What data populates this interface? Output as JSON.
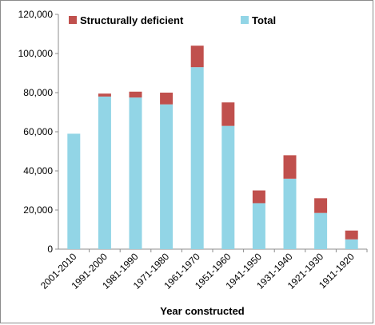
{
  "chart_data": {
    "type": "bar",
    "stacked": true,
    "title": "",
    "xlabel": "Year constructed",
    "ylabel": "",
    "ylim": [
      0,
      120000
    ],
    "y_ticks": [
      0,
      20000,
      40000,
      60000,
      80000,
      100000,
      120000
    ],
    "y_tick_labels": [
      "0",
      "20,000",
      "40,000",
      "60,000",
      "80,000",
      "100,000",
      "120,000"
    ],
    "grid": false,
    "legend_position": "top",
    "categories": [
      "2001-2010",
      "1991-2000",
      "1981-1990",
      "1971-1980",
      "1961-1970",
      "1951-1960",
      "1941-1950",
      "1931-1940",
      "1921-1930",
      "1911-1920"
    ],
    "series": [
      {
        "name": "Total",
        "color": "#92d5e6",
        "values": [
          59000,
          78000,
          77500,
          74000,
          93000,
          63000,
          23500,
          36000,
          18500,
          5000
        ]
      },
      {
        "name": "Structurally deficient",
        "color": "#c0504d",
        "values": [
          0,
          1500,
          3000,
          6000,
          11000,
          12000,
          6500,
          12000,
          7500,
          4500
        ]
      }
    ],
    "legend": [
      {
        "label": "Structurally deficient",
        "color": "#c0504d"
      },
      {
        "label": "Total",
        "color": "#92d5e6"
      }
    ]
  }
}
